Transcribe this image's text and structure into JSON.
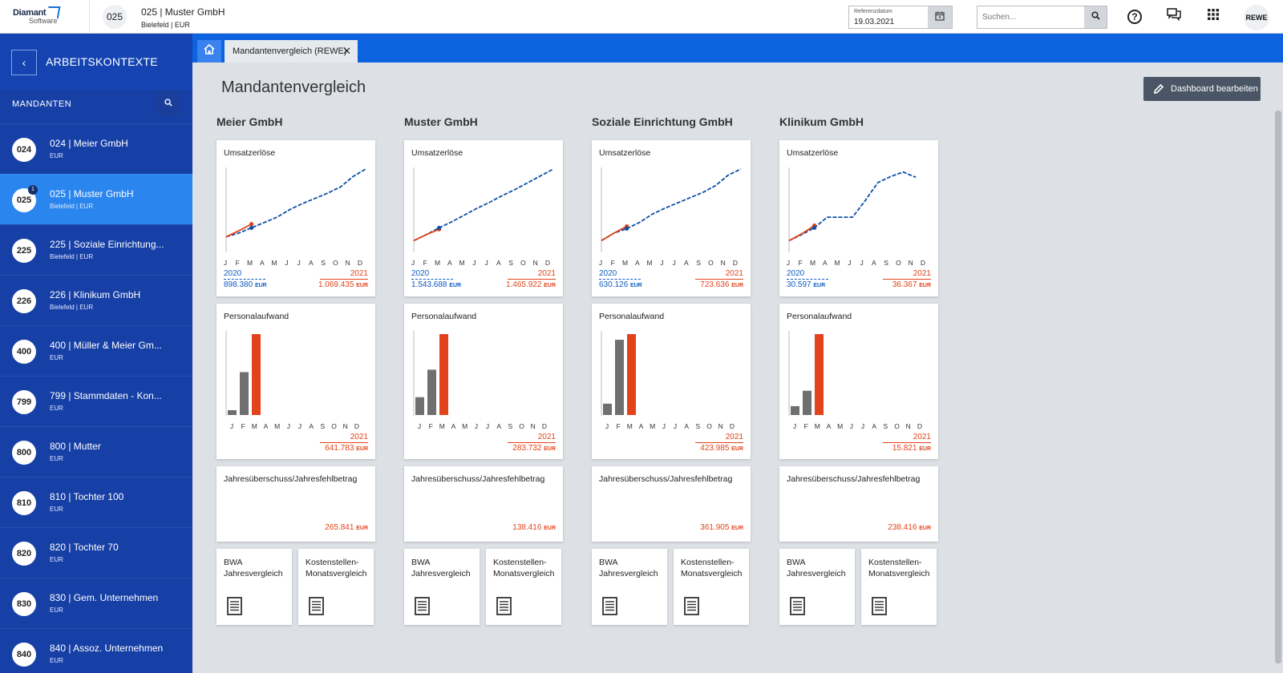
{
  "app": {
    "logo_line1": "Diamant",
    "logo_line2": "Software",
    "context_code": "025",
    "context_title": "025 | Muster GmbH",
    "context_sub": "Bielefeld | EUR",
    "ref_label": "Referenzdatum",
    "ref_value": "19.03.2021",
    "search_placeholder": "Suchen...",
    "user_label": "REWE"
  },
  "sidebar": {
    "title": "ARBEITSKONTEXTE",
    "section": "MANDANTEN",
    "items": [
      {
        "code": "024",
        "name": "024 | Meier GmbH",
        "sub": "EUR",
        "active": false,
        "badge": ""
      },
      {
        "code": "025",
        "name": "025 | Muster GmbH",
        "sub": "Bielefeld | EUR",
        "active": true,
        "badge": "1"
      },
      {
        "code": "225",
        "name": "225 | Soziale Einrichtung...",
        "sub": "Bielefeld | EUR",
        "active": false,
        "badge": ""
      },
      {
        "code": "226",
        "name": "226 | Klinikum GmbH",
        "sub": "Bielefeld | EUR",
        "active": false,
        "badge": ""
      },
      {
        "code": "400",
        "name": "400 | Müller & Meier Gm...",
        "sub": "EUR",
        "active": false,
        "badge": ""
      },
      {
        "code": "799",
        "name": "799 | Stammdaten - Kon...",
        "sub": "EUR",
        "active": false,
        "badge": ""
      },
      {
        "code": "800",
        "name": "800 | Mutter",
        "sub": "EUR",
        "active": false,
        "badge": ""
      },
      {
        "code": "810",
        "name": "810 | Tochter 100",
        "sub": "EUR",
        "active": false,
        "badge": ""
      },
      {
        "code": "820",
        "name": "820 | Tochter 70",
        "sub": "EUR",
        "active": false,
        "badge": ""
      },
      {
        "code": "830",
        "name": "830 | Gem. Unternehmen",
        "sub": "EUR",
        "active": false,
        "badge": ""
      },
      {
        "code": "840",
        "name": "840 | Assoz. Unternehmen",
        "sub": "EUR",
        "active": false,
        "badge": ""
      }
    ]
  },
  "tabs": {
    "active_label": "Mandantenvergleich (REWE)",
    "close_glyph": "✕"
  },
  "main": {
    "title": "Mandantenvergleich",
    "edit_button": "Dashboard bearbeiten",
    "months": [
      "J",
      "F",
      "M",
      "A",
      "M",
      "J",
      "J",
      "A",
      "S",
      "O",
      "N",
      "D"
    ],
    "unit": "EUR",
    "card_titles": {
      "umsatz": "Umsatzerlöse",
      "personal": "Personalaufwand",
      "jahres": "Jahresüberschuss/Jahresfehlbetrag",
      "bwa": "BWA Jahresvergleich",
      "kst": "Kostenstellen-Monatsvergleich"
    },
    "colors": {
      "prev_year": "#0e4fa8",
      "curr_year": "#e2431a",
      "bar_prev": "#6f6f6f"
    },
    "companies": [
      {
        "name": "Meier GmbH",
        "umsatz": {
          "year_prev": "2020",
          "value_prev": "898.380",
          "year_curr": "2021",
          "value_curr": "1.069.435",
          "line_prev": [
            0.1,
            0.15,
            0.22,
            0.29,
            0.36,
            0.46,
            0.54,
            0.61,
            0.68,
            0.76,
            0.9,
            1.0
          ],
          "line_curr": [
            0.1,
            0.18,
            0.27
          ]
        },
        "personal": {
          "year_curr": "2021",
          "value_curr": "641.783",
          "bars": [
            0.06,
            0.53,
            1.0
          ]
        },
        "jahres": {
          "value": "265.841"
        }
      },
      {
        "name": "Muster GmbH",
        "umsatz": {
          "year_prev": "2020",
          "value_prev": "1.543.688",
          "year_curr": "2021",
          "value_curr": "1.465.922",
          "line_prev": [
            0.05,
            0.13,
            0.22,
            0.3,
            0.39,
            0.48,
            0.56,
            0.65,
            0.73,
            0.82,
            0.91,
            1.0
          ],
          "line_curr": [
            0.05,
            0.13,
            0.2
          ]
        },
        "personal": {
          "year_curr": "2021",
          "value_curr": "283.732",
          "bars": [
            0.22,
            0.56,
            1.0
          ]
        },
        "jahres": {
          "value": "138.416"
        }
      },
      {
        "name": "Soziale Einrichtung GmbH",
        "umsatz": {
          "year_prev": "2020",
          "value_prev": "630.126",
          "year_curr": "2021",
          "value_curr": "723.636",
          "line_prev": [
            0.05,
            0.15,
            0.21,
            0.29,
            0.4,
            0.48,
            0.55,
            0.62,
            0.69,
            0.78,
            0.92,
            1.0
          ],
          "line_curr": [
            0.05,
            0.15,
            0.24
          ]
        },
        "personal": {
          "year_curr": "2021",
          "value_curr": "423.985",
          "bars": [
            0.14,
            0.93,
            1.0
          ]
        },
        "jahres": {
          "value": "361.905"
        }
      },
      {
        "name": "Klinikum GmbH",
        "umsatz": {
          "year_prev": "2020",
          "value_prev": "30.597",
          "year_curr": "2021",
          "value_curr": "36.367",
          "line_prev": [
            0.05,
            0.13,
            0.22,
            0.36,
            0.36,
            0.36,
            0.58,
            0.82,
            0.9,
            0.96,
            0.89,
            null
          ],
          "line_curr": [
            0.05,
            0.14,
            0.25
          ]
        },
        "personal": {
          "year_curr": "2021",
          "value_curr": "15.821",
          "bars": [
            0.11,
            0.3,
            1.0
          ]
        },
        "jahres": {
          "value": "238.416"
        }
      }
    ]
  }
}
